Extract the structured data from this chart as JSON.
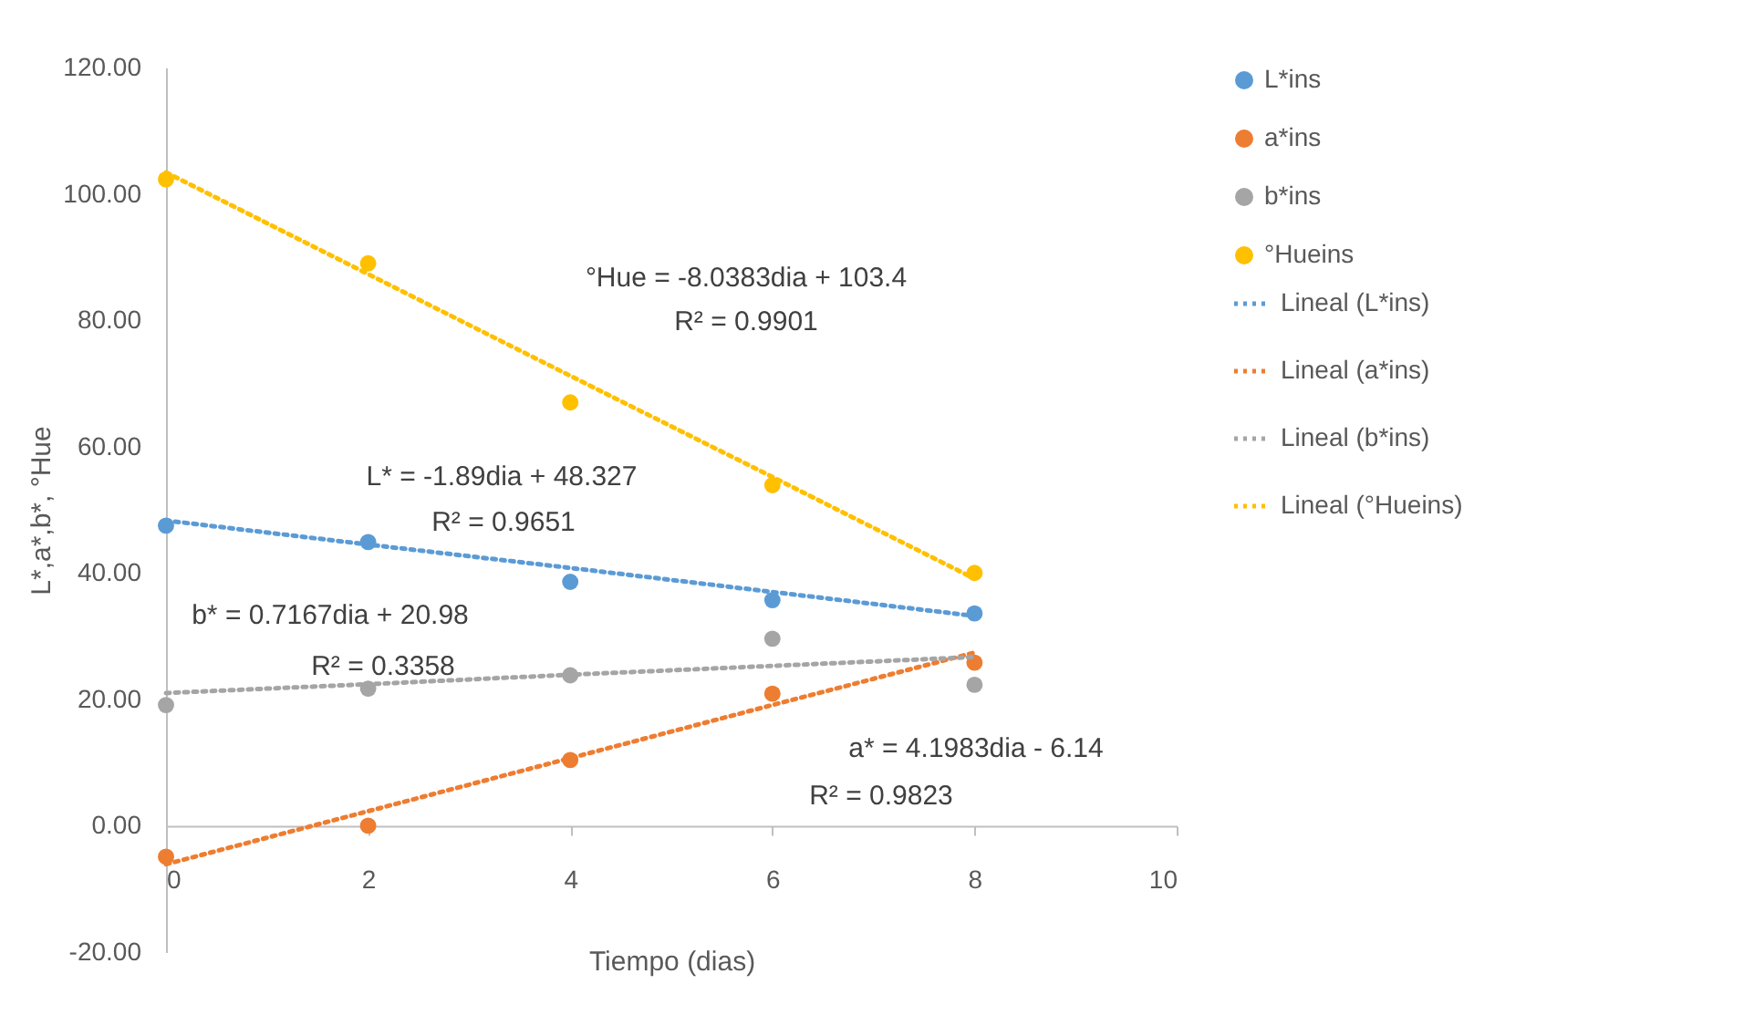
{
  "chart_data": {
    "type": "scatter",
    "xlabel": "Tiempo (dias)",
    "ylabel": "L*,a*,b*, °Hue",
    "x": [
      0,
      2,
      4,
      6,
      8
    ],
    "xlim": [
      0,
      10
    ],
    "xticks": [
      0,
      2,
      4,
      6,
      8,
      10
    ],
    "ylim": [
      -20,
      120
    ],
    "yticks": [
      {
        "value": -20,
        "label": "-20.00"
      },
      {
        "value": 0,
        "label": "0.00"
      },
      {
        "value": 20,
        "label": "20.00"
      },
      {
        "value": 40,
        "label": "40.00"
      },
      {
        "value": 60,
        "label": "60.00"
      },
      {
        "value": 80,
        "label": "80.00"
      },
      {
        "value": 100,
        "label": "100.00"
      },
      {
        "value": 120,
        "label": "120.00"
      }
    ],
    "grid": false,
    "legend": "right",
    "marker": "circle",
    "series": [
      {
        "name": "L*ins",
        "color": "#5b9bd5",
        "values": [
          47.5,
          44.9,
          38.6,
          35.7,
          33.6
        ]
      },
      {
        "name": "a*ins",
        "color": "#ed7d31",
        "values": [
          -4.9,
          0,
          10.4,
          20.9,
          25.8
        ]
      },
      {
        "name": "b*ins",
        "color": "#a5a5a5",
        "values": [
          19.1,
          21.7,
          23.8,
          29.6,
          22.3
        ]
      },
      {
        "name": "°Hueins",
        "color": "#ffc000",
        "values": [
          102.3,
          89,
          67,
          53.9,
          40
        ]
      },
      {
        "name": "Lineal (L*ins)",
        "type": "line",
        "marker": "none",
        "line_style": "dotted",
        "color": "#5b9bd5",
        "values": [
          48.3,
          44.5,
          40.8,
          37.0,
          33.2
        ]
      },
      {
        "name": "Lineal (a*ins)",
        "type": "line",
        "marker": "none",
        "line_style": "dotted",
        "color": "#ed7d31",
        "values": [
          -6.1,
          2.3,
          10.7,
          19.1,
          27.4
        ]
      },
      {
        "name": "Lineal (b*ins)",
        "type": "line",
        "marker": "none",
        "line_style": "dotted",
        "color": "#a5a5a5",
        "values": [
          21.0,
          22.4,
          23.9,
          25.3,
          26.7
        ]
      },
      {
        "name": "Lineal (°Hueins)",
        "type": "line",
        "marker": "none",
        "line_style": "dotted",
        "color": "#ffc000",
        "values": [
          103.4,
          87.3,
          71.2,
          55.2,
          39.1
        ]
      }
    ],
    "annotations": [
      "°Hue = -8.0383dia + 103.4",
      "R² = 0.9901",
      "L* = -1.89dia + 48.327",
      "R² = 0.9651",
      "b* = 0.7167dia + 20.98",
      "R² = 0.3358",
      "a* = 4.1983dia - 6.14",
      "R² = 0.9823"
    ]
  }
}
